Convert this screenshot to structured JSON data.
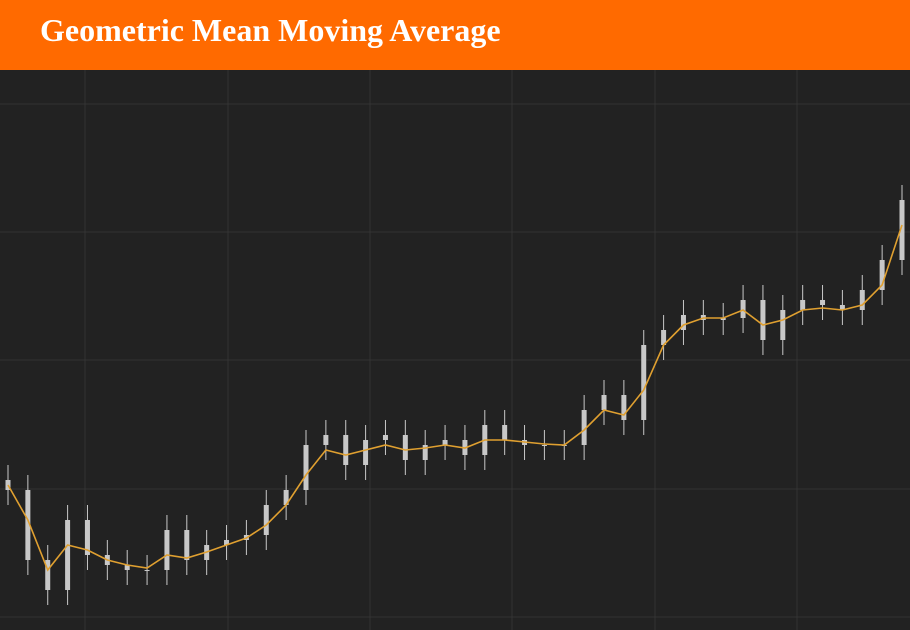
{
  "chart_data": {
    "type": "candlestick",
    "title": "Geometric Mean Moving Average",
    "ylim": [
      0,
      560
    ],
    "candle_color": "#c8c8c8",
    "open": [
      150,
      140,
      70,
      40,
      110,
      75,
      65,
      60,
      60,
      100,
      70,
      85,
      90,
      95,
      125,
      140,
      185,
      195,
      165,
      190,
      195,
      170,
      185,
      190,
      175,
      205,
      190,
      185,
      185,
      185,
      220,
      235,
      210,
      285,
      300,
      315,
      310,
      312,
      330,
      290,
      320,
      330,
      325,
      320,
      340,
      370
    ],
    "high": [
      165,
      155,
      85,
      125,
      125,
      90,
      80,
      75,
      115,
      115,
      100,
      105,
      110,
      140,
      155,
      200,
      210,
      210,
      205,
      210,
      210,
      200,
      205,
      205,
      220,
      220,
      205,
      200,
      200,
      235,
      250,
      250,
      300,
      315,
      330,
      330,
      327,
      345,
      345,
      335,
      345,
      345,
      340,
      355,
      385,
      445
    ],
    "low": [
      125,
      55,
      25,
      25,
      60,
      50,
      45,
      45,
      45,
      55,
      55,
      70,
      75,
      80,
      110,
      125,
      170,
      150,
      150,
      175,
      155,
      155,
      170,
      160,
      160,
      175,
      170,
      170,
      170,
      170,
      205,
      195,
      195,
      270,
      285,
      295,
      295,
      297,
      275,
      275,
      305,
      310,
      305,
      305,
      325,
      355
    ],
    "close": [
      140,
      70,
      40,
      110,
      75,
      65,
      60,
      60,
      100,
      70,
      85,
      90,
      95,
      125,
      140,
      185,
      195,
      165,
      190,
      195,
      170,
      185,
      190,
      175,
      205,
      190,
      185,
      185,
      185,
      220,
      235,
      210,
      285,
      300,
      315,
      310,
      312,
      330,
      290,
      320,
      330,
      325,
      320,
      340,
      370,
      430
    ],
    "series": [
      {
        "color": "#e0a030",
        "values": [
          145,
          110,
          60,
          85,
          80,
          70,
          65,
          62,
          75,
          72,
          78,
          85,
          92,
          105,
          125,
          155,
          180,
          175,
          180,
          185,
          180,
          182,
          185,
          182,
          190,
          190,
          188,
          186,
          185,
          200,
          220,
          215,
          240,
          285,
          305,
          312,
          312,
          320,
          305,
          310,
          320,
          322,
          320,
          325,
          345,
          405
        ]
      }
    ]
  }
}
